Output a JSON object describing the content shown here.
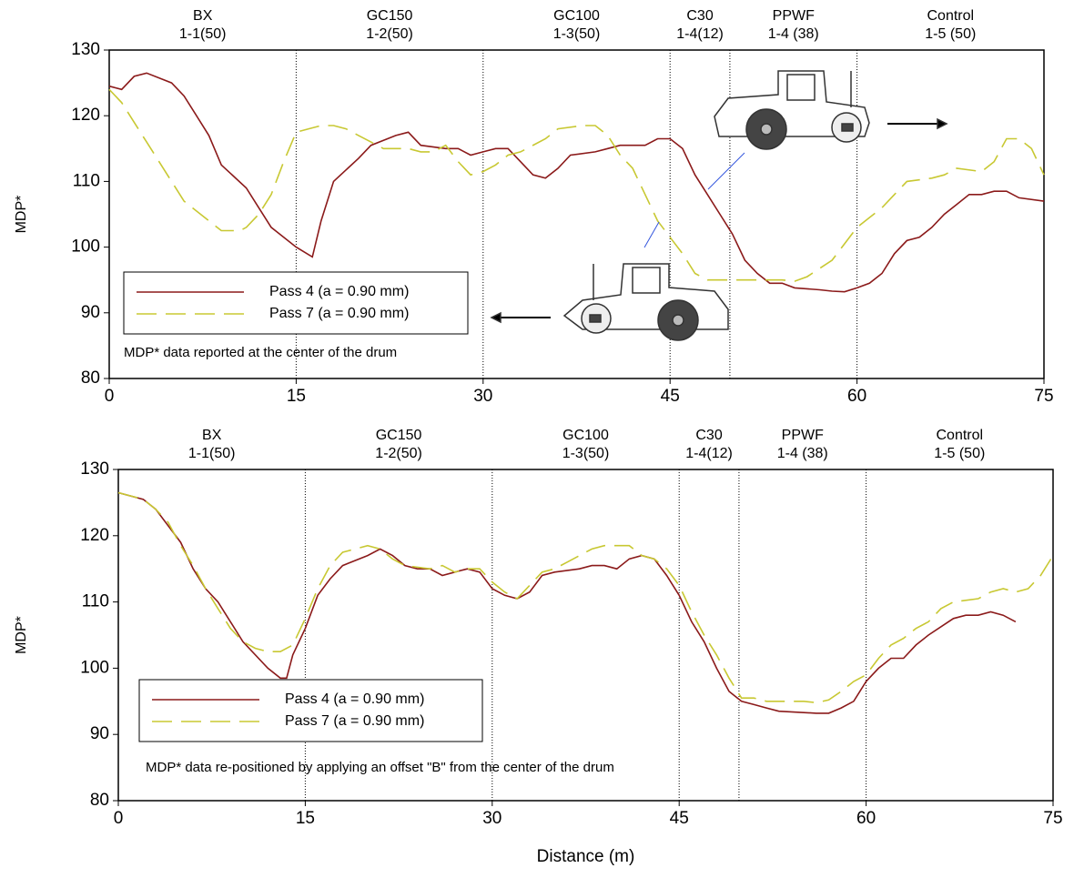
{
  "chart_data": [
    {
      "type": "line",
      "ylabel": "MDP*",
      "annotation": "MDP* data reported at the center of the drum",
      "xlim": [
        0,
        75
      ],
      "xticks": [
        0,
        15,
        30,
        45,
        60,
        75
      ],
      "ylim": [
        80,
        130
      ],
      "yticks": [
        80,
        90,
        100,
        110,
        120,
        130
      ],
      "dividers": [
        15,
        30,
        45,
        49.8,
        60
      ],
      "sections": [
        {
          "name": "BX",
          "code": "1-1(50)"
        },
        {
          "name": "GC150",
          "code": "1-2(50)"
        },
        {
          "name": "GC100",
          "code": "1-3(50)"
        },
        {
          "name": "C30",
          "code": "1-4(12)"
        },
        {
          "name": "PPWF",
          "code": "1-4 (38)"
        },
        {
          "name": "Control",
          "code": "1-5 (50)"
        }
      ],
      "series": [
        {
          "name": "Pass 4 (a = 0.90 mm)",
          "color": "#8b1a1a",
          "dash": false,
          "x": [
            0,
            1,
            2,
            3,
            5,
            6,
            7,
            8,
            9,
            11,
            12,
            13,
            15,
            16.3,
            17,
            18,
            20,
            21,
            23,
            24,
            25,
            27,
            28,
            29,
            30,
            31,
            32,
            33,
            34,
            35,
            36,
            37,
            39,
            40,
            41,
            43,
            44,
            45,
            46,
            47,
            48,
            49,
            50,
            51,
            52,
            53,
            54,
            55,
            57,
            58,
            59,
            60,
            61,
            62,
            63,
            64,
            65,
            66,
            67,
            68,
            69,
            70,
            71,
            72,
            73,
            75
          ],
          "values": [
            124.5,
            124,
            126,
            126.5,
            125,
            123,
            120,
            117,
            112.5,
            109,
            106,
            103,
            100,
            98.5,
            104,
            110,
            113.5,
            115.5,
            117,
            117.5,
            115.5,
            115,
            115,
            114,
            114.5,
            115,
            115,
            113,
            111,
            110.5,
            112,
            114,
            114.5,
            115,
            115.5,
            115.5,
            116.5,
            116.5,
            115,
            111,
            108,
            105,
            102,
            98,
            96,
            94.5,
            94.5,
            93.8,
            93.5,
            93.3,
            93.2,
            93.8,
            94.5,
            96,
            99,
            101,
            101.5,
            103,
            105,
            106.5,
            108,
            108,
            108.5,
            108.5,
            107.5,
            107
          ]
        },
        {
          "name": "Pass 7 (a = 0.90 mm)",
          "color": "#c8c832",
          "dash": true,
          "x": [
            0,
            1,
            3,
            5,
            6,
            8,
            9,
            10.5,
            11,
            12,
            13,
            14,
            15,
            16,
            17,
            18,
            19,
            20,
            21,
            22,
            24,
            25,
            26,
            27,
            28,
            29,
            30,
            31,
            32,
            33,
            35,
            36,
            38,
            39,
            40,
            41,
            42,
            43,
            44,
            45,
            46,
            47,
            48,
            49,
            51,
            52,
            53,
            54,
            55,
            56,
            58,
            60,
            61,
            62,
            63,
            64,
            66,
            67,
            68,
            70,
            71,
            72,
            73,
            74,
            75
          ],
          "values": [
            124,
            122,
            116,
            110,
            107,
            104,
            102.5,
            102.5,
            103,
            105,
            108,
            113,
            117.5,
            118,
            118.5,
            118.5,
            118,
            117,
            116,
            115,
            115,
            114.5,
            114.5,
            115.5,
            113,
            111,
            111.5,
            112.5,
            114,
            114.5,
            116.5,
            118,
            118.5,
            118.5,
            117,
            114,
            112,
            108,
            104,
            101.5,
            99,
            96,
            95,
            95,
            95,
            95,
            95,
            95,
            94.8,
            95.5,
            98,
            103,
            104.5,
            106,
            108,
            110,
            110.5,
            111,
            112,
            111.5,
            113,
            116.5,
            116.5,
            115,
            111
          ]
        }
      ]
    },
    {
      "type": "line",
      "ylabel": "MDP*",
      "xlabel": "Distance (m)",
      "annotation": "MDP* data re-positioned by applying an offset \"B\" from the center of the drum",
      "xlim": [
        0,
        75
      ],
      "xticks": [
        0,
        15,
        30,
        45,
        60,
        75
      ],
      "ylim": [
        80,
        130
      ],
      "yticks": [
        80,
        90,
        100,
        110,
        120,
        130
      ],
      "dividers": [
        15,
        30,
        45,
        49.8,
        60
      ],
      "sections": [
        {
          "name": "BX",
          "code": "1-1(50)"
        },
        {
          "name": "GC150",
          "code": "1-2(50)"
        },
        {
          "name": "GC100",
          "code": "1-3(50)"
        },
        {
          "name": "C30",
          "code": "1-4(12)"
        },
        {
          "name": "PPWF",
          "code": "1-4 (38)"
        },
        {
          "name": "Control",
          "code": "1-5 (50)"
        }
      ],
      "series": [
        {
          "name": "Pass 4 (a = 0.90 mm)",
          "color": "#8b1a1a",
          "dash": false,
          "x": [
            0,
            2,
            3,
            5,
            6,
            7,
            8,
            9,
            10,
            12,
            13,
            13.5,
            14,
            15,
            16,
            17,
            18,
            20,
            21,
            22,
            23,
            24,
            25,
            26,
            27,
            28,
            29,
            30,
            31,
            32,
            33,
            34,
            35,
            37,
            38,
            39,
            40,
            41,
            42,
            43,
            44,
            45,
            46,
            47,
            48,
            49,
            50,
            51,
            52,
            53,
            54,
            56,
            57,
            58,
            59,
            60,
            61,
            62,
            63,
            64,
            65,
            67,
            68,
            69,
            70,
            71,
            72
          ],
          "values": [
            126.5,
            125.5,
            124,
            119,
            115,
            112,
            110,
            107,
            104,
            100,
            98.5,
            98.5,
            102,
            106,
            111,
            113.5,
            115.5,
            117,
            118,
            117,
            115.5,
            115,
            115,
            114,
            114.5,
            115,
            114.5,
            112,
            111,
            110.5,
            111.5,
            114,
            114.5,
            115,
            115.5,
            115.5,
            115,
            116.5,
            117,
            116.5,
            114,
            111,
            107,
            104,
            100,
            96.5,
            95,
            94.5,
            94,
            93.5,
            93.4,
            93.2,
            93.2,
            94,
            95,
            98,
            100,
            101.5,
            101.5,
            103.5,
            105,
            107.5,
            108,
            108,
            108.5,
            108,
            107
          ]
        },
        {
          "name": "Pass 7 (a = 0.90 mm)",
          "color": "#c8c832",
          "dash": true,
          "x": [
            0,
            2,
            3,
            4,
            5,
            6,
            7,
            8,
            9,
            10,
            11,
            12,
            13,
            14,
            15,
            16,
            17,
            18,
            19,
            20,
            21,
            22,
            23,
            25,
            26,
            27,
            28,
            29,
            30,
            31,
            32,
            33,
            34,
            35,
            36,
            37,
            38,
            39,
            41,
            42,
            43,
            44,
            45,
            46,
            47,
            48,
            49,
            50,
            51,
            52,
            54,
            55,
            56,
            57,
            58,
            59,
            60,
            61,
            62,
            63,
            64,
            65,
            66,
            67,
            69,
            70,
            71,
            72,
            73,
            74,
            75
          ],
          "values": [
            126.5,
            125.5,
            124,
            122,
            118.5,
            115.5,
            112,
            109,
            106,
            104,
            103,
            102.5,
            102.5,
            103.5,
            107.5,
            112,
            115.5,
            117.5,
            118,
            118.5,
            118,
            116.5,
            115.5,
            115,
            115.5,
            114.5,
            115,
            115,
            113,
            111.5,
            110.5,
            112.5,
            114.5,
            115,
            116,
            117,
            118,
            118.5,
            118.5,
            117,
            116.5,
            115,
            112.5,
            108.5,
            105,
            102,
            98.5,
            95.5,
            95.5,
            95,
            95,
            95,
            94.8,
            95.2,
            96.5,
            98,
            99,
            101.5,
            103.5,
            104.5,
            106,
            107,
            109,
            110,
            110.5,
            111.5,
            112,
            111.5,
            112,
            114,
            117
          ]
        }
      ]
    }
  ]
}
